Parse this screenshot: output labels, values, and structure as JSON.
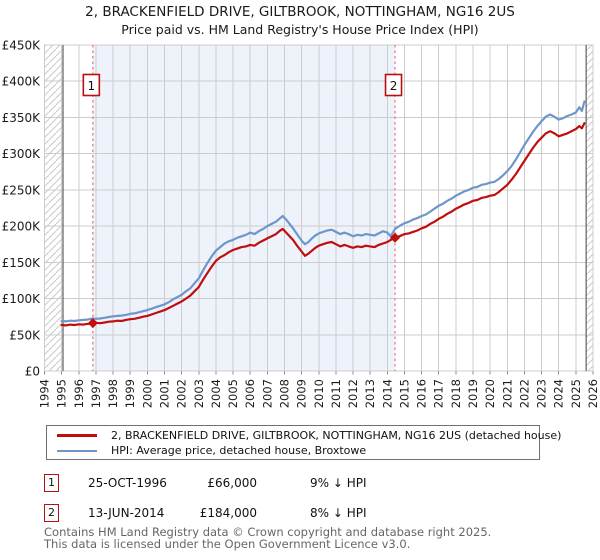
{
  "title": "2, BRACKENFIELD DRIVE, GILTBROOK, NOTTINGHAM, NG16 2US",
  "subtitle": "Price paid vs. HM Land Registry's House Price Index (HPI)",
  "colors": {
    "property_line": "#c00d0d",
    "hpi_line": "#6d96c9",
    "shaded_region": "#edf2fb",
    "gridline": "#cccccc",
    "data_boundary_line": "#606060",
    "sale_dotted_line": "#f87c7c",
    "marker_box_border": "#bb0f0f",
    "hatch_line": "#c9c9c9",
    "axis_text": "#1a1a1a",
    "footer_text": "#666666"
  },
  "chart_data": {
    "type": "line",
    "title": "2, BRACKENFIELD DRIVE, GILTBROOK, NOTTINGHAM, NG16 2US",
    "subtitle": "Price paid vs. HM Land Registry's House Price Index (HPI)",
    "xlabel": "",
    "ylabel": "",
    "x_range": [
      1994,
      2026
    ],
    "y_range_pounds": [
      0,
      450000
    ],
    "y_tick_labels": [
      "£0",
      "£50K",
      "£100K",
      "£150K",
      "£200K",
      "£250K",
      "£300K",
      "£350K",
      "£400K",
      "£450K"
    ],
    "x_tick_labels": [
      "1994",
      "1995",
      "1996",
      "1997",
      "1998",
      "1999",
      "2000",
      "2001",
      "2002",
      "2003",
      "2004",
      "2005",
      "2006",
      "2007",
      "2008",
      "2009",
      "2010",
      "2011",
      "2012",
      "2013",
      "2014",
      "2015",
      "2016",
      "2017",
      "2018",
      "2019",
      "2020",
      "2021",
      "2022",
      "2023",
      "2024",
      "2025",
      "2026"
    ],
    "grid": true,
    "legend_position": "bottom",
    "data_start_year": 1995.08,
    "data_end_year": 2025.6,
    "hatch_regions": [
      [
        1994,
        1995.08
      ],
      [
        2025.6,
        2026.35
      ]
    ],
    "shaded_region": [
      1996.82,
      2014.45
    ],
    "sales": [
      {
        "label": "1",
        "year": 1996.82,
        "price_k": 66
      },
      {
        "label": "2",
        "year": 2014.45,
        "price_k": 184
      }
    ],
    "series": [
      {
        "name": "2, BRACKENFIELD DRIVE, GILTBROOK, NOTTINGHAM, NG16 2US (detached house)",
        "color": "#c00d0d",
        "points": [
          [
            1995.0,
            63.5
          ],
          [
            1995.25,
            63
          ],
          [
            1995.5,
            64
          ],
          [
            1995.75,
            63.5
          ],
          [
            1996.0,
            64.5
          ],
          [
            1996.25,
            64
          ],
          [
            1996.5,
            65
          ],
          [
            1996.82,
            66
          ],
          [
            1997.0,
            66.5
          ],
          [
            1997.25,
            66
          ],
          [
            1997.5,
            67
          ],
          [
            1997.75,
            68
          ],
          [
            1998.0,
            68.5
          ],
          [
            1998.25,
            69.5
          ],
          [
            1998.5,
            69
          ],
          [
            1998.75,
            70.5
          ],
          [
            1999.0,
            71.5
          ],
          [
            1999.25,
            72
          ],
          [
            1999.5,
            73.5
          ],
          [
            1999.75,
            75
          ],
          [
            2000.0,
            76
          ],
          [
            2000.25,
            78
          ],
          [
            2000.5,
            80
          ],
          [
            2000.75,
            82
          ],
          [
            2001.0,
            84
          ],
          [
            2001.25,
            87
          ],
          [
            2001.5,
            90
          ],
          [
            2001.75,
            93
          ],
          [
            2002.0,
            96
          ],
          [
            2002.25,
            100
          ],
          [
            2002.5,
            104
          ],
          [
            2002.75,
            110
          ],
          [
            2003.0,
            116
          ],
          [
            2003.25,
            126
          ],
          [
            2003.5,
            135
          ],
          [
            2003.75,
            144
          ],
          [
            2004.0,
            152
          ],
          [
            2004.25,
            157
          ],
          [
            2004.5,
            160
          ],
          [
            2004.75,
            164
          ],
          [
            2005.0,
            167
          ],
          [
            2005.25,
            169
          ],
          [
            2005.5,
            171
          ],
          [
            2005.75,
            172
          ],
          [
            2006.0,
            174
          ],
          [
            2006.25,
            173
          ],
          [
            2006.5,
            177
          ],
          [
            2006.75,
            180
          ],
          [
            2007.0,
            183
          ],
          [
            2007.25,
            186
          ],
          [
            2007.5,
            189
          ],
          [
            2007.75,
            194
          ],
          [
            2007.9,
            196
          ],
          [
            2008.1,
            191
          ],
          [
            2008.3,
            186
          ],
          [
            2008.5,
            181
          ],
          [
            2008.7,
            174
          ],
          [
            2009.0,
            165
          ],
          [
            2009.2,
            159
          ],
          [
            2009.4,
            162
          ],
          [
            2009.6,
            166
          ],
          [
            2009.8,
            170
          ],
          [
            2010.0,
            173
          ],
          [
            2010.25,
            175
          ],
          [
            2010.5,
            177
          ],
          [
            2010.75,
            178
          ],
          [
            2011.0,
            175
          ],
          [
            2011.25,
            172
          ],
          [
            2011.5,
            174
          ],
          [
            2011.75,
            172
          ],
          [
            2012.0,
            170
          ],
          [
            2012.25,
            172
          ],
          [
            2012.5,
            171
          ],
          [
            2012.75,
            173
          ],
          [
            2013.0,
            172
          ],
          [
            2013.25,
            171
          ],
          [
            2013.5,
            174
          ],
          [
            2013.75,
            176
          ],
          [
            2014.0,
            178
          ],
          [
            2014.2,
            181
          ],
          [
            2014.45,
            184
          ],
          [
            2014.7,
            186
          ],
          [
            2015.0,
            189
          ],
          [
            2015.25,
            190
          ],
          [
            2015.5,
            192
          ],
          [
            2015.75,
            194
          ],
          [
            2016.0,
            197
          ],
          [
            2016.25,
            199
          ],
          [
            2016.5,
            203
          ],
          [
            2016.75,
            206
          ],
          [
            2017.0,
            210
          ],
          [
            2017.25,
            213
          ],
          [
            2017.5,
            217
          ],
          [
            2017.75,
            220
          ],
          [
            2018.0,
            224
          ],
          [
            2018.25,
            227
          ],
          [
            2018.5,
            230
          ],
          [
            2018.75,
            232
          ],
          [
            2019.0,
            235
          ],
          [
            2019.25,
            236
          ],
          [
            2019.5,
            239
          ],
          [
            2019.75,
            240
          ],
          [
            2020.0,
            242
          ],
          [
            2020.25,
            243
          ],
          [
            2020.5,
            247
          ],
          [
            2020.75,
            252
          ],
          [
            2021.0,
            257
          ],
          [
            2021.25,
            264
          ],
          [
            2021.5,
            272
          ],
          [
            2021.75,
            281
          ],
          [
            2022.0,
            290
          ],
          [
            2022.25,
            299
          ],
          [
            2022.5,
            308
          ],
          [
            2022.75,
            316
          ],
          [
            2023.0,
            322
          ],
          [
            2023.25,
            328
          ],
          [
            2023.5,
            331
          ],
          [
            2023.75,
            328
          ],
          [
            2024.0,
            324
          ],
          [
            2024.25,
            326
          ],
          [
            2024.5,
            328
          ],
          [
            2024.75,
            331
          ],
          [
            2025.0,
            334
          ],
          [
            2025.2,
            338
          ],
          [
            2025.35,
            335
          ],
          [
            2025.5,
            342
          ]
        ]
      },
      {
        "name": "HPI: Average price, detached house, Broxtowe",
        "color": "#6d96c9",
        "points": [
          [
            1995.0,
            69
          ],
          [
            1995.25,
            68.5
          ],
          [
            1995.5,
            69.5
          ],
          [
            1995.75,
            69
          ],
          [
            1996.0,
            70
          ],
          [
            1996.25,
            70.5
          ],
          [
            1996.5,
            71
          ],
          [
            1996.82,
            72.5
          ],
          [
            1997.0,
            72
          ],
          [
            1997.25,
            72.5
          ],
          [
            1997.5,
            73.5
          ],
          [
            1997.75,
            74.5
          ],
          [
            1998.0,
            75.5
          ],
          [
            1998.25,
            76
          ],
          [
            1998.5,
            76.5
          ],
          [
            1998.75,
            77.5
          ],
          [
            1999.0,
            79
          ],
          [
            1999.25,
            79.5
          ],
          [
            1999.5,
            81
          ],
          [
            1999.75,
            82.5
          ],
          [
            2000.0,
            84
          ],
          [
            2000.25,
            86
          ],
          [
            2000.5,
            88
          ],
          [
            2000.75,
            90
          ],
          [
            2001.0,
            92
          ],
          [
            2001.25,
            95
          ],
          [
            2001.5,
            99
          ],
          [
            2001.75,
            102
          ],
          [
            2002.0,
            105
          ],
          [
            2002.25,
            110
          ],
          [
            2002.5,
            114
          ],
          [
            2002.75,
            121
          ],
          [
            2003.0,
            128
          ],
          [
            2003.25,
            139
          ],
          [
            2003.5,
            149
          ],
          [
            2003.75,
            158
          ],
          [
            2004.0,
            166
          ],
          [
            2004.25,
            171
          ],
          [
            2004.5,
            176
          ],
          [
            2004.75,
            179
          ],
          [
            2005.0,
            181
          ],
          [
            2005.25,
            184
          ],
          [
            2005.5,
            186
          ],
          [
            2005.75,
            188
          ],
          [
            2006.0,
            191
          ],
          [
            2006.25,
            189
          ],
          [
            2006.5,
            193
          ],
          [
            2006.75,
            196
          ],
          [
            2007.0,
            200
          ],
          [
            2007.25,
            203
          ],
          [
            2007.5,
            206
          ],
          [
            2007.75,
            211
          ],
          [
            2007.9,
            214
          ],
          [
            2008.1,
            209
          ],
          [
            2008.3,
            203
          ],
          [
            2008.5,
            197
          ],
          [
            2008.7,
            190
          ],
          [
            2009.0,
            180
          ],
          [
            2009.2,
            175
          ],
          [
            2009.4,
            178
          ],
          [
            2009.6,
            183
          ],
          [
            2009.8,
            187
          ],
          [
            2010.0,
            190
          ],
          [
            2010.25,
            192
          ],
          [
            2010.5,
            194
          ],
          [
            2010.75,
            195
          ],
          [
            2011.0,
            192
          ],
          [
            2011.25,
            189
          ],
          [
            2011.5,
            191
          ],
          [
            2011.75,
            189
          ],
          [
            2012.0,
            186
          ],
          [
            2012.25,
            188
          ],
          [
            2012.5,
            187
          ],
          [
            2012.75,
            189
          ],
          [
            2013.0,
            188
          ],
          [
            2013.25,
            187
          ],
          [
            2013.5,
            190
          ],
          [
            2013.75,
            193
          ],
          [
            2014.0,
            191
          ],
          [
            2014.2,
            186
          ],
          [
            2014.45,
            196
          ],
          [
            2014.7,
            200
          ],
          [
            2015.0,
            204
          ],
          [
            2015.25,
            206
          ],
          [
            2015.5,
            209
          ],
          [
            2015.75,
            211
          ],
          [
            2016.0,
            214
          ],
          [
            2016.25,
            216
          ],
          [
            2016.5,
            220
          ],
          [
            2016.75,
            224
          ],
          [
            2017.0,
            228
          ],
          [
            2017.25,
            231
          ],
          [
            2017.5,
            235
          ],
          [
            2017.75,
            238
          ],
          [
            2018.0,
            242
          ],
          [
            2018.25,
            245
          ],
          [
            2018.5,
            248
          ],
          [
            2018.75,
            250
          ],
          [
            2019.0,
            253
          ],
          [
            2019.25,
            254
          ],
          [
            2019.5,
            257
          ],
          [
            2019.75,
            258
          ],
          [
            2020.0,
            260
          ],
          [
            2020.25,
            261
          ],
          [
            2020.5,
            265
          ],
          [
            2020.75,
            270
          ],
          [
            2021.0,
            276
          ],
          [
            2021.25,
            283
          ],
          [
            2021.5,
            292
          ],
          [
            2021.75,
            302
          ],
          [
            2022.0,
            312
          ],
          [
            2022.25,
            321
          ],
          [
            2022.5,
            330
          ],
          [
            2022.75,
            338
          ],
          [
            2023.0,
            345
          ],
          [
            2023.25,
            351
          ],
          [
            2023.5,
            354
          ],
          [
            2023.75,
            351
          ],
          [
            2024.0,
            347
          ],
          [
            2024.25,
            349
          ],
          [
            2024.5,
            352
          ],
          [
            2024.75,
            354
          ],
          [
            2025.0,
            357
          ],
          [
            2025.2,
            364
          ],
          [
            2025.35,
            359
          ],
          [
            2025.5,
            372
          ]
        ]
      }
    ]
  },
  "legend": {
    "items": [
      {
        "label": "2, BRACKENFIELD DRIVE, GILTBROOK, NOTTINGHAM, NG16 2US (detached house)",
        "color": "#c00d0d"
      },
      {
        "label": "HPI: Average price, detached house, Broxtowe",
        "color": "#6d96c9"
      }
    ]
  },
  "transactions": [
    {
      "num": "1",
      "date": "25-OCT-1996",
      "price": "£66,000",
      "hpi_diff": "9% ↓ HPI"
    },
    {
      "num": "2",
      "date": "13-JUN-2014",
      "price": "£184,000",
      "hpi_diff": "8% ↓ HPI"
    }
  ],
  "footer": {
    "line1": "Contains HM Land Registry data © Crown copyright and database right 2025.",
    "line2": "This data is licensed under the Open Government Licence v3.0."
  }
}
